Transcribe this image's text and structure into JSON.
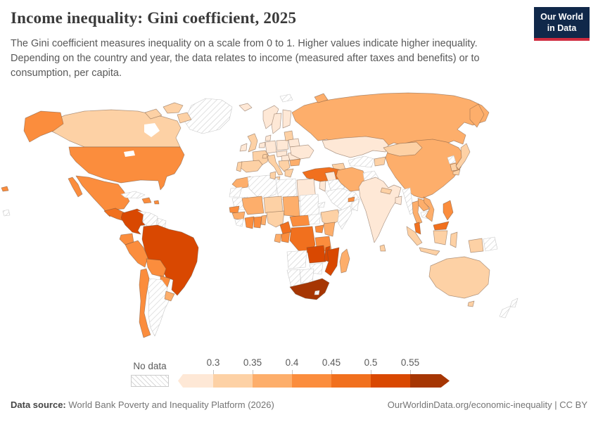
{
  "header": {
    "title": "Income inequality: Gini coefficient, 2025",
    "subtitle": "The Gini coefficient measures inequality on a scale from 0 to 1. Higher values indicate higher inequality. Depending on the country and year, the data relates to income (measured after taxes and benefits) or to consumption, per capita.",
    "logo": {
      "line1": "Our World",
      "line2": "in Data",
      "bg": "#10284a",
      "accent": "#cf2b3f"
    }
  },
  "legend": {
    "no_data_label": "No data",
    "ticks": [
      "0.3",
      "0.35",
      "0.4",
      "0.45",
      "0.5",
      "0.55"
    ],
    "bin_colors": [
      "#fee8d6",
      "#fdd1a5",
      "#fdae6b",
      "#fb8d3d",
      "#f1701e",
      "#d94801",
      "#a63603"
    ]
  },
  "footer": {
    "source_label": "Data source:",
    "source_text": " World Bank Poverty and Inequality Platform (2026)",
    "license_text": "OurWorldinData.org/economic-inequality | CC BY"
  },
  "map": {
    "countries": {
      "greenland": "nodata",
      "can-arc1": 1,
      "can-arc2": 1,
      "can-arc3": 1,
      "canada": 1,
      "alaska": 3,
      "usa": 3,
      "hawaii": 3,
      "pacific-dot": "nodata",
      "mexico": 3,
      "baja": 3,
      "guatemala-ca": 4,
      "panama": 5,
      "cuba": "nodata",
      "hispaniola": 3,
      "pr": 3,
      "colombia": 5,
      "venezuela": "nodata",
      "guyanas": "nodata",
      "ecuador": 3,
      "peru": 3,
      "brazil": 5,
      "bolivia": 3,
      "paraguay": 3,
      "uruguay": 2,
      "chile": 3,
      "argentina": "nodata",
      "iceland": 0,
      "svalbard": "nodata",
      "norway": 0,
      "sweden": 0,
      "finland": 0,
      "denmark": 0,
      "uk": 1,
      "ireland": 0,
      "benelux": 0,
      "germany": 0,
      "france": 1,
      "spain": 1,
      "portugal": 1,
      "italy": 1,
      "sicily": 1,
      "switzerland": 1,
      "czech-austria": 0,
      "poland": 0,
      "hungary-slovakia": 0,
      "balkans": 1,
      "greece": 1,
      "romania": 0,
      "bulgaria": 2,
      "baltics": 1,
      "belarus": 0,
      "ukraine": 0,
      "russia": 2,
      "kamchatka": 2,
      "russia-islands": 2,
      "kazakhstan": 0,
      "turkmen-uzbek": "nodata",
      "kyrgyz-tajik": 1,
      "caucasus": 1,
      "turkey": 4,
      "syria": 0,
      "iraq": "nodata",
      "israel-jordan": 0,
      "saudi": "nodata",
      "yemen": "nodata",
      "oman": "nodata",
      "uae": 3,
      "iran": 2,
      "afghanistan": "nodata",
      "pakistan": 0,
      "india": 0,
      "nepal": 1,
      "bangladesh": 0,
      "srilanka": 1,
      "china": 2,
      "mongolia": 1,
      "nkorea": "nodata",
      "skorea": 1,
      "japan": 1,
      "japan-s": 1,
      "myanmar": "nodata",
      "thailand": 2,
      "laos": 2,
      "cambodia": "nodata",
      "vietnam": 2,
      "malaysia": 4,
      "borneo-my": 4,
      "sumatra": 1,
      "java": 1,
      "kalimantan": 1,
      "sulawesi": 1,
      "westpapua": 1,
      "png": "nodata",
      "philippines": 3,
      "morocco": 2,
      "wsahara": "nodata",
      "algeria": "nodata",
      "tunisia": 1,
      "libya": "nodata",
      "egypt": 0,
      "mauritania": "nodata",
      "mali": 2,
      "niger": 1,
      "chad": 2,
      "sudan": "nodata",
      "eritrea": "nodata",
      "senegal": 3,
      "guinea": 2,
      "sierra-liberia": "nodata",
      "civ": 3,
      "ghana": 3,
      "benin-togo": 2,
      "nigeria": 1,
      "cameroon": 4,
      "car": 3,
      "ssudan": "nodata",
      "ethiopia": 1,
      "somalia": "nodata",
      "uganda": 3,
      "kenya": 2,
      "congo-b": 3,
      "gabon": 2,
      "drc": 4,
      "tanzania": 3,
      "angola": "nodata",
      "zambia": 5,
      "malawi": 5,
      "mozambique": 5,
      "zimbabwe": "nodata",
      "botswana": "nodata",
      "namibia": "nodata",
      "south-africa": 6,
      "lesotho": "nodata",
      "madagascar": 2,
      "australia": 1,
      "tasmania": 1,
      "nz-north": "nodata",
      "nz-south": "nodata"
    }
  }
}
